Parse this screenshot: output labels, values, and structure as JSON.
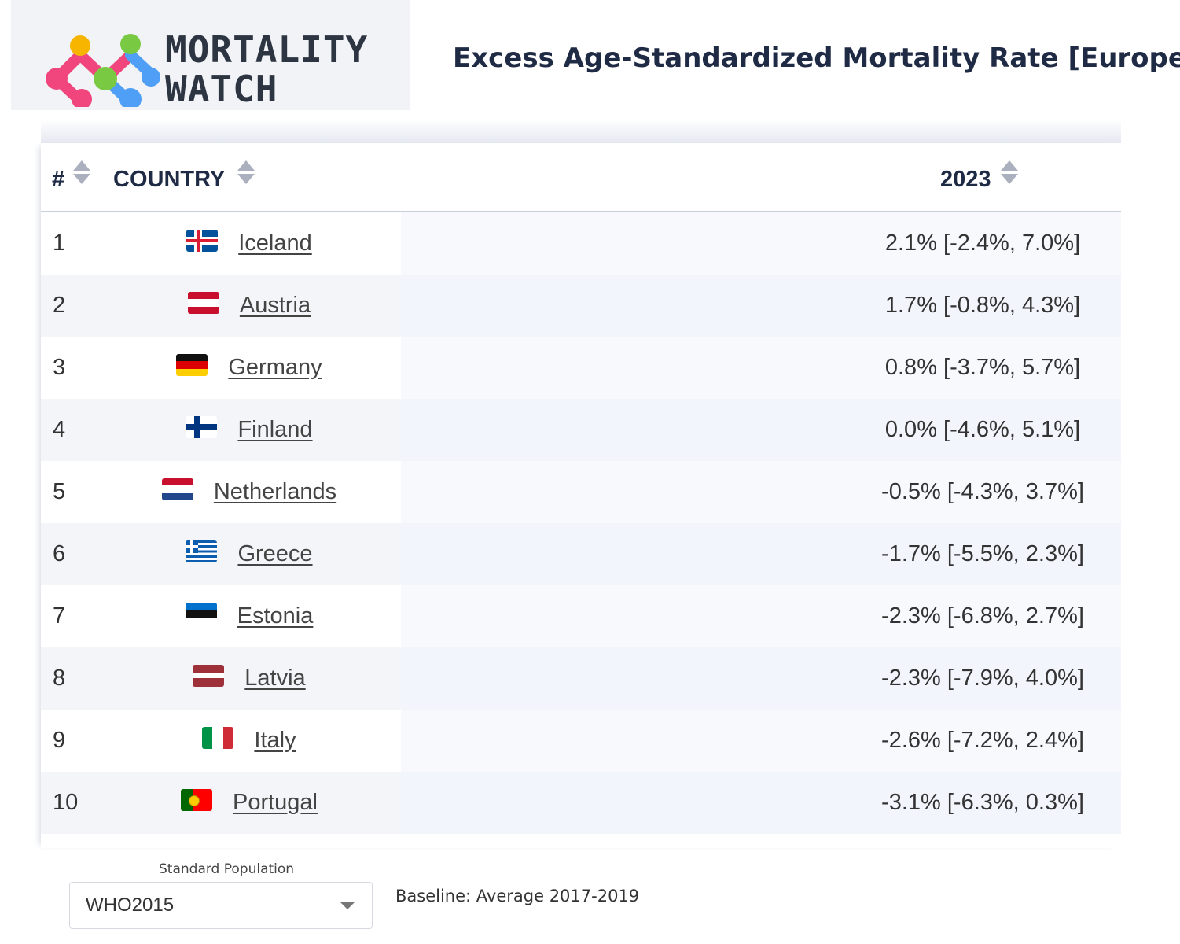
{
  "header": {
    "logo_line1": "MORTALITY",
    "logo_line2": "WATCH",
    "title": "Excess Age-Standardized Mortality Rate [Europe]"
  },
  "table": {
    "columns": {
      "rank": "#",
      "country": "COUNTRY",
      "year": "2023"
    },
    "rows": [
      {
        "rank": "1",
        "country": "Iceland",
        "flag": "iceland-flag",
        "value": "2.1% [-2.4%, 7.0%]"
      },
      {
        "rank": "2",
        "country": "Austria",
        "flag": "austria-flag",
        "value": "1.7% [-0.8%, 4.3%]"
      },
      {
        "rank": "3",
        "country": "Germany",
        "flag": "germany-flag",
        "value": "0.8% [-3.7%, 5.7%]"
      },
      {
        "rank": "4",
        "country": "Finland",
        "flag": "finland-flag",
        "value": "0.0% [-4.6%, 5.1%]"
      },
      {
        "rank": "5",
        "country": "Netherlands",
        "flag": "netherlands-flag",
        "value": "-0.5% [-4.3%, 3.7%]"
      },
      {
        "rank": "6",
        "country": "Greece",
        "flag": "greece-flag",
        "value": "-1.7% [-5.5%, 2.3%]"
      },
      {
        "rank": "7",
        "country": "Estonia",
        "flag": "estonia-flag",
        "value": "-2.3% [-6.8%, 2.7%]"
      },
      {
        "rank": "8",
        "country": "Latvia",
        "flag": "latvia-flag",
        "value": "-2.3% [-7.9%, 4.0%]"
      },
      {
        "rank": "9",
        "country": "Italy",
        "flag": "italy-flag",
        "value": "-2.6% [-7.2%, 2.4%]"
      },
      {
        "rank": "10",
        "country": "Portugal",
        "flag": "portugal-flag",
        "value": "-3.1% [-6.3%, 0.3%]"
      }
    ]
  },
  "controls": {
    "standard_population_label": "Standard Population",
    "standard_population_value": "WHO2015",
    "baseline": "Baseline: Average 2017-2019"
  },
  "icons": {
    "sort": "sort-icon",
    "dropdown": "chevron-down-icon"
  },
  "colors": {
    "title": "#1f2a44",
    "logo_pink": "#f0457d",
    "logo_yellow": "#f7b500",
    "logo_green": "#7ac943",
    "logo_blue": "#4e9ff5"
  }
}
